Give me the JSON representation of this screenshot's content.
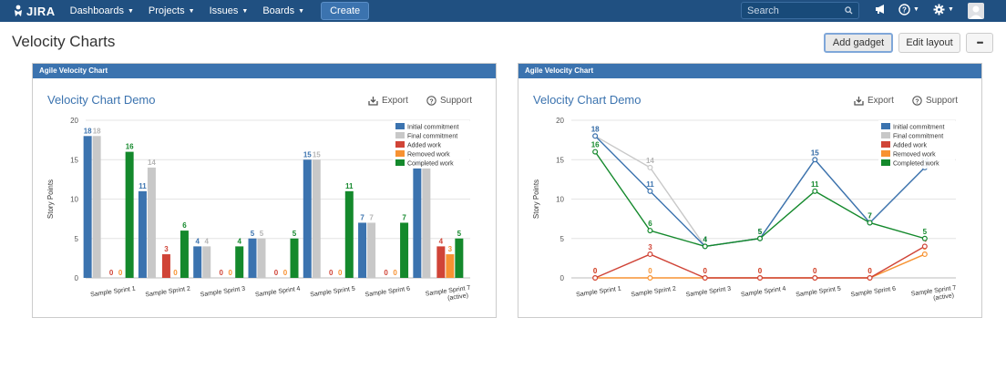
{
  "nav": {
    "logo": "JIRA",
    "items": [
      "Dashboards",
      "Projects",
      "Issues",
      "Boards"
    ],
    "create": "Create",
    "search_placeholder": "Search"
  },
  "header": {
    "title": "Velocity Charts",
    "add_gadget": "Add gadget",
    "edit_layout": "Edit layout",
    "more": "•••"
  },
  "gadgets": [
    {
      "header": "Agile Velocity Chart",
      "title": "Velocity Chart Demo",
      "export": "Export",
      "support": "Support",
      "chart_type": "bar"
    },
    {
      "header": "Agile Velocity Chart",
      "title": "Velocity Chart Demo",
      "export": "Export",
      "support": "Support",
      "chart_type": "line"
    }
  ],
  "colors": {
    "nav": "#205081",
    "gadget_header": "#3b73af",
    "initial": "#3b73af",
    "final": "#c8c8c8",
    "added": "#d04437",
    "removed": "#f79232",
    "completed": "#14892c"
  },
  "chart_data": [
    {
      "type": "bar",
      "ylabel": "Story Points",
      "ylim": [
        0,
        20
      ],
      "yticks": [
        0,
        5,
        10,
        15,
        20
      ],
      "categories": [
        "Sample Sprint 1",
        "Sample Sprint 2",
        "Sample Sprint 3",
        "Sample Sprint 4",
        "Sample Sprint 5",
        "Sample Sprint 6",
        "Sample Sprint 7 (active)"
      ],
      "legend_position": "top-right",
      "series": [
        {
          "name": "Initial commitment",
          "values": [
            18,
            11,
            4,
            5,
            15,
            7,
            14
          ]
        },
        {
          "name": "Final commitment",
          "values": [
            18,
            14,
            4,
            5,
            15,
            7,
            14
          ]
        },
        {
          "name": "Added work",
          "values": [
            0,
            3,
            0,
            0,
            0,
            0,
            4
          ]
        },
        {
          "name": "Removed work",
          "values": [
            0,
            0,
            0,
            0,
            0,
            0,
            3
          ]
        },
        {
          "name": "Completed work",
          "values": [
            16,
            6,
            4,
            5,
            11,
            7,
            5
          ]
        }
      ]
    },
    {
      "type": "line",
      "ylabel": "Story Points",
      "ylim": [
        0,
        20
      ],
      "yticks": [
        0,
        5,
        10,
        15,
        20
      ],
      "categories": [
        "Sample Sprint 1",
        "Sample Sprint 2",
        "Sample Sprint 3",
        "Sample Sprint 4",
        "Sample Sprint 5",
        "Sample Sprint 6",
        "Sample Sprint 7 (active)"
      ],
      "legend_position": "top-right",
      "series": [
        {
          "name": "Initial commitment",
          "values": [
            18,
            11,
            4,
            5,
            15,
            7,
            14
          ]
        },
        {
          "name": "Final commitment",
          "values": [
            18,
            14,
            4,
            5,
            15,
            7,
            14
          ]
        },
        {
          "name": "Added work",
          "values": [
            0,
            3,
            0,
            0,
            0,
            0,
            4
          ]
        },
        {
          "name": "Removed work",
          "values": [
            0,
            0,
            0,
            0,
            0,
            0,
            3
          ]
        },
        {
          "name": "Completed work",
          "values": [
            16,
            6,
            4,
            5,
            11,
            7,
            5
          ]
        }
      ]
    }
  ]
}
